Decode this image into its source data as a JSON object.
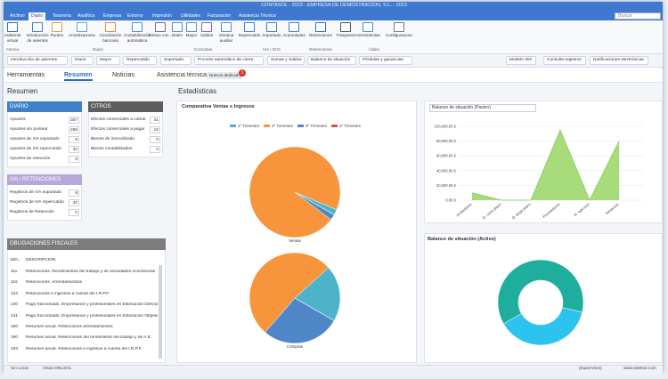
{
  "window": {
    "title": "CONTASOL - 2023 - EMPRESA DE DEMOSTRACION, S.L. - 2023",
    "search": "Buscar"
  },
  "menu": [
    "Archivo",
    "Diario",
    "Tesorería",
    "Analítica",
    "Empresa",
    "Entorno",
    "Impresión",
    "Utilidades",
    "Facturación",
    "Asistencia Técnica"
  ],
  "ribbon": {
    "items": [
      "Asistente virtual",
      "Introducción de asientos",
      "Punteo",
      "Amortizaciones",
      "Conciliación bancaria",
      "Contabilización automática",
      "Enlace con...",
      "Diario",
      "Mayor",
      "Saldos",
      "Ventana auxiliar",
      "Repercutido",
      "Soportado",
      "Acumulados",
      "Retenciones",
      "Traspasos",
      "Herramientas",
      "Configuraciones"
    ],
    "groups": [
      "Atenea",
      "Diario",
      "Consultas",
      "IVA / IGIC",
      "Retenciones",
      "Útiles"
    ]
  },
  "toolbar": [
    "Introducción de asientos",
    "Diario",
    "Mayor",
    "Repercutido",
    "Soportado",
    "Proceso automático de cierre",
    "Sumas y Saldos",
    "Balance de situación",
    "Pérdidas y ganancias",
    "Modelo 303",
    "Consulta registros",
    "Notificaciones electrónicas"
  ],
  "nav": {
    "tabs": [
      "Herramientas",
      "Resumen",
      "Noticias",
      "Asistencia técnica"
    ],
    "badge_text": "Nuevos dedicados",
    "badge_count": 1
  },
  "summary": {
    "title": "Resumen",
    "panels": [
      {
        "title": "DIARIO",
        "rows": [
          [
            "Apuntes",
            307
          ],
          [
            "Apuntes sin puntear",
            286
          ],
          [
            "Apuntes de IVA soportado",
            8
          ],
          [
            "Apuntes de IVA repercutido",
            32
          ],
          [
            "Apuntes de retención",
            0
          ]
        ]
      },
      {
        "title": "CITROS",
        "rows": [
          [
            "Efectos comerciales a cobrar",
            41
          ],
          [
            "Efectos comerciales a pagar",
            10
          ],
          [
            "Bienes de inmovilizado",
            0
          ],
          [
            "Bienes contabilizados",
            0
          ]
        ]
      },
      {
        "title": "IVA / RETENCIONES",
        "rows": [
          [
            "Registros de IVA soportado",
            8
          ],
          [
            "Registros de IVA repercutido",
            32
          ],
          [
            "Registros de Retención",
            0
          ]
        ]
      }
    ]
  },
  "obligations": {
    "title": "OBLIGACIONES FISCALES",
    "columns": [
      "MO...",
      "DESCRIPCIÓN"
    ],
    "rows": [
      [
        "111",
        "Retenciones. Rendimientos del trabajo y de actividades económicas"
      ],
      [
        "115",
        "Retenciones. Arrendamientos"
      ],
      [
        "123",
        "Retenciones e ingresos a cuenta del I.R.P.F."
      ],
      [
        "130",
        "Pago fraccionado. Empresarios y profesionales en Estimación Directa"
      ],
      [
        "131",
        "Pago fraccionado. Empresarios y profesionales en Estimación Objetiva"
      ],
      [
        "180",
        "Resumen anual. Retenciones arrendamientos"
      ],
      [
        "190",
        "Resumen anual. Retenciones del rendimiento del trabajo y de A.E."
      ],
      [
        "193",
        "Resumen anual. Retenciones e ingresos a cuenta del I.R.P.F."
      ]
    ]
  },
  "stats": {
    "title": "Estadísticas",
    "comparison": {
      "type": "pie",
      "title": "Comparativa Ventas e Ingresos",
      "series": [
        {
          "name": "1º Trimestre",
          "color": "#4cb3c9"
        },
        {
          "name": "2º Trimestre",
          "color": "#f7943c"
        },
        {
          "name": "3º Trimestre",
          "color": "#4f86c8"
        },
        {
          "name": "4º Trimestre",
          "color": "#d9534f"
        }
      ],
      "pies": [
        {
          "label": "Ventas",
          "values": [
            2,
            96,
            2,
            0
          ]
        },
        {
          "label": "Compras",
          "values": [
            20,
            52,
            28,
            0
          ]
        }
      ]
    },
    "liabilities": {
      "type": "area",
      "title": "Balance de situación (Pasivo)",
      "color": "#9fd86b",
      "categories": [
        "Acreedores",
        "D. corto plazo",
        "D. largo plazo",
        "Proveedores",
        "R. ejercicio",
        "Reservas"
      ],
      "values": [
        10000,
        0,
        0,
        95000,
        0,
        80000
      ],
      "ylim": [
        0,
        100000
      ],
      "yticks": [
        {
          "value": 0,
          "label": "0.00 €"
        },
        {
          "value": 20000,
          "label": "20,000.00 €"
        },
        {
          "value": 40000,
          "label": "40,000.00 €"
        },
        {
          "value": 60000,
          "label": "60,000.00 €"
        },
        {
          "value": 80000,
          "label": "80,000.00 €"
        },
        {
          "value": 100000,
          "label": "100,000.00 €"
        }
      ]
    },
    "assets": {
      "type": "donut",
      "title": "Balance de situación (Activo)",
      "values": [
        62,
        38
      ],
      "colors": [
        "#1fae9d",
        "#2cc3ee"
      ]
    }
  },
  "status": [
    "Sin Local",
    "Onda ONLSOL",
    "[Supervisor]",
    "www.sdelsol.com"
  ]
}
